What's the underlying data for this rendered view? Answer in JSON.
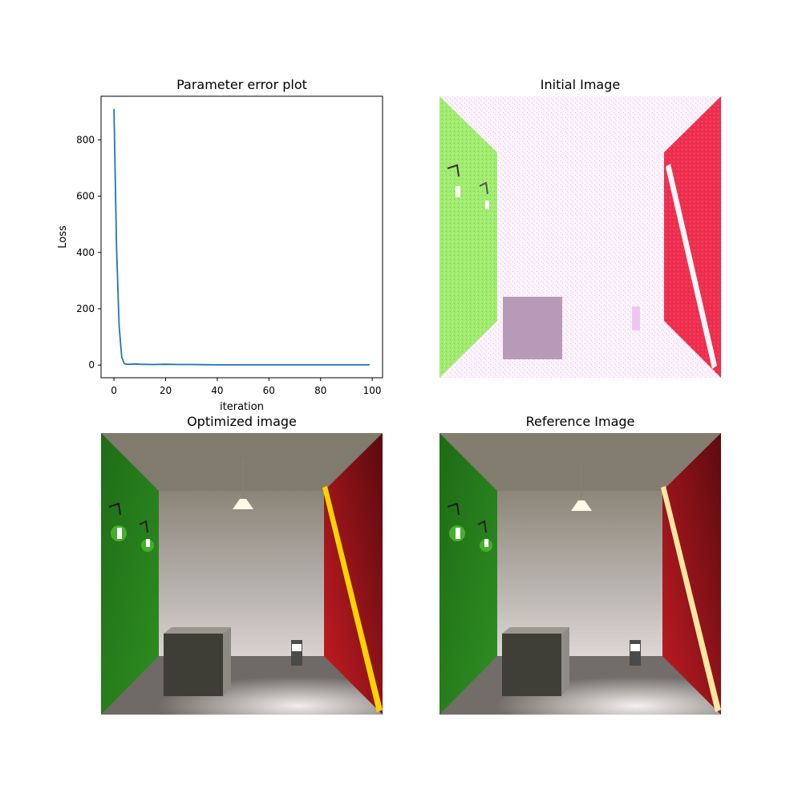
{
  "panels": {
    "plot_title": "Parameter error plot",
    "initial_title": "Initial Image",
    "optimized_title": "Optimized image",
    "reference_title": "Reference Image"
  },
  "chart_data": {
    "type": "line",
    "title": "Parameter error plot",
    "xlabel": "iteration",
    "ylabel": "Loss",
    "xlim": [
      -5,
      104
    ],
    "ylim": [
      -45,
      955
    ],
    "xticks": [
      0,
      20,
      40,
      60,
      80,
      100
    ],
    "yticks": [
      0,
      200,
      400,
      600,
      800
    ],
    "grid": false,
    "series": [
      {
        "color": "#1f77b4",
        "x": [
          0,
          1,
          2,
          3,
          4,
          5,
          6,
          8,
          10,
          15,
          20,
          25,
          30,
          40,
          50,
          60,
          70,
          80,
          90,
          99
        ],
        "y": [
          910,
          420,
          140,
          28,
          5,
          3,
          3,
          4,
          3,
          2,
          3,
          2,
          2,
          1,
          1,
          1,
          1,
          1,
          1,
          1
        ]
      }
    ]
  },
  "colors": {
    "line": "#1f77b4",
    "green_wall": "#2c8a1c",
    "red_wall": "#a8121a",
    "initial_green": "#9be86a",
    "initial_red": "#f0304f",
    "strip_yellow": "#ffd400",
    "strip_ref": "#ffe7a0"
  }
}
